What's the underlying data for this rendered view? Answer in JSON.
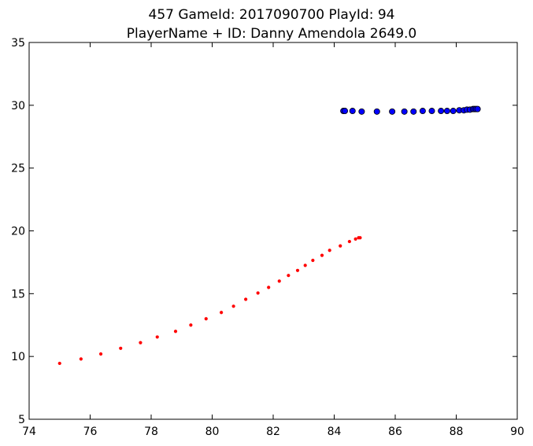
{
  "chart_data": {
    "type": "scatter",
    "title": "457 GameId: 2017090700 PlayId: 94",
    "subtitle": "PlayerName + ID: Danny Amendola 2649.0",
    "xlim": [
      74,
      90
    ],
    "ylim": [
      5,
      35
    ],
    "xticks": [
      74,
      76,
      78,
      80,
      82,
      84,
      86,
      88,
      90
    ],
    "yticks": [
      5,
      10,
      15,
      20,
      25,
      30,
      35
    ],
    "grid": false,
    "series": [
      {
        "color": "#ff0000",
        "marker": "small-dot",
        "points": [
          [
            75.0,
            9.45
          ],
          [
            75.7,
            9.8
          ],
          [
            76.35,
            10.2
          ],
          [
            77.0,
            10.65
          ],
          [
            77.65,
            11.1
          ],
          [
            78.2,
            11.55
          ],
          [
            78.8,
            12.0
          ],
          [
            79.3,
            12.5
          ],
          [
            79.8,
            13.0
          ],
          [
            80.3,
            13.5
          ],
          [
            80.7,
            14.0
          ],
          [
            81.1,
            14.55
          ],
          [
            81.5,
            15.05
          ],
          [
            81.85,
            15.5
          ],
          [
            82.2,
            16.0
          ],
          [
            82.5,
            16.45
          ],
          [
            82.8,
            16.85
          ],
          [
            83.05,
            17.25
          ],
          [
            83.3,
            17.65
          ],
          [
            83.6,
            18.05
          ],
          [
            83.85,
            18.45
          ],
          [
            84.2,
            18.8
          ],
          [
            84.5,
            19.15
          ],
          [
            84.7,
            19.35
          ],
          [
            84.8,
            19.45
          ],
          [
            84.85,
            19.45
          ]
        ]
      },
      {
        "color": "#0000ff",
        "marker": "circle",
        "points": [
          [
            84.3,
            29.55
          ],
          [
            84.35,
            29.55
          ],
          [
            84.6,
            29.55
          ],
          [
            84.9,
            29.5
          ],
          [
            85.4,
            29.5
          ],
          [
            85.9,
            29.5
          ],
          [
            86.3,
            29.5
          ],
          [
            86.6,
            29.5
          ],
          [
            86.9,
            29.55
          ],
          [
            87.2,
            29.55
          ],
          [
            87.5,
            29.55
          ],
          [
            87.7,
            29.55
          ],
          [
            87.9,
            29.55
          ],
          [
            88.1,
            29.6
          ],
          [
            88.25,
            29.6
          ],
          [
            88.35,
            29.65
          ],
          [
            88.45,
            29.65
          ],
          [
            88.55,
            29.7
          ],
          [
            88.6,
            29.7
          ],
          [
            88.65,
            29.7
          ],
          [
            88.7,
            29.7
          ]
        ]
      }
    ]
  }
}
